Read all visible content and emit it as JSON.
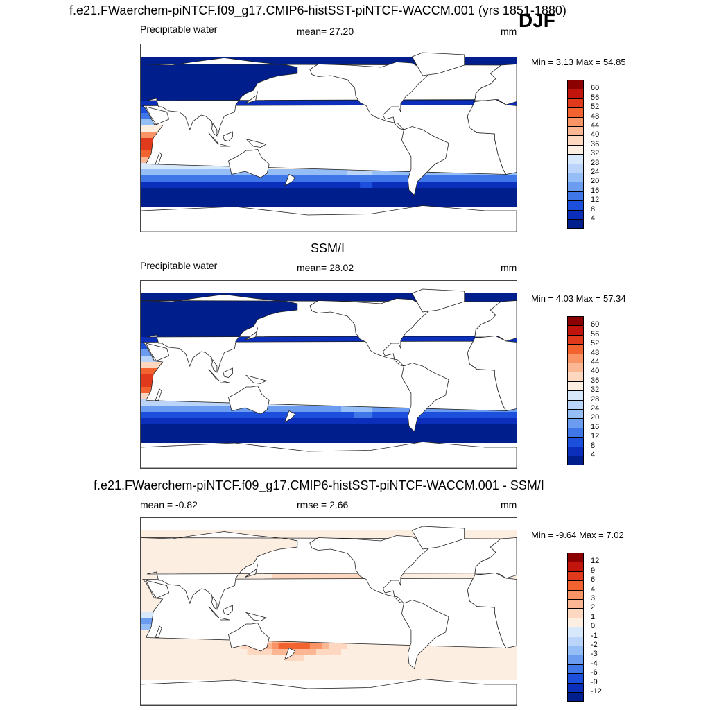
{
  "figure": {
    "title": "f.e21.FWaerchem-piNTCF.f09_g17.CMIP6-histSST-piNTCF-WACCM.001 (yrs 1851-1880)",
    "season": "DJF"
  },
  "panels": [
    {
      "id": "model",
      "heading": "",
      "left_label": "Precipitable water",
      "center_label": "mean=  27.20",
      "units": "mm",
      "minmax": "Min =   3.13 Max =  54.85",
      "levels": [
        "60",
        "56",
        "52",
        "48",
        "44",
        "40",
        "36",
        "32",
        "28",
        "24",
        "20",
        "16",
        "12",
        "8",
        "4"
      ],
      "colors": [
        "#8b0000",
        "#c0140c",
        "#e0391b",
        "#f2632f",
        "#f89466",
        "#fbb793",
        "#fdd7bf",
        "#fdeee2",
        "#d8e8fb",
        "#bad5f9",
        "#95bdf6",
        "#6c9cf0",
        "#3f76e8",
        "#1c50dc",
        "#0b2fbb",
        "#001f8c"
      ],
      "field": "pw"
    },
    {
      "id": "obs",
      "heading": "SSM/I",
      "left_label": "Precipitable water",
      "center_label": "mean=  28.02",
      "units": "mm",
      "minmax": "Min =   4.03 Max =  57.34",
      "levels": [
        "60",
        "56",
        "52",
        "48",
        "44",
        "40",
        "36",
        "32",
        "28",
        "24",
        "20",
        "16",
        "12",
        "8",
        "4"
      ],
      "colors": [
        "#8b0000",
        "#c0140c",
        "#e0391b",
        "#f2632f",
        "#f89466",
        "#fbb793",
        "#fdd7bf",
        "#fdeee2",
        "#d8e8fb",
        "#bad5f9",
        "#95bdf6",
        "#6c9cf0",
        "#3f76e8",
        "#1c50dc",
        "#0b2fbb",
        "#001f8c"
      ],
      "field": "pw"
    },
    {
      "id": "diff",
      "heading": "f.e21.FWaerchem-piNTCF.f09_g17.CMIP6-histSST-piNTCF-WACCM.001 - SSM/I",
      "left_label": "mean =  -0.82",
      "center_label": "rmse =   2.66",
      "units": "mm",
      "minmax": "Min =  -9.64 Max =   7.02",
      "levels": [
        "12",
        "9",
        "6",
        "4",
        "3",
        "2",
        "1",
        "0",
        "-1",
        "-2",
        "-3",
        "-4",
        "-6",
        "-9",
        "-12"
      ],
      "colors": [
        "#8b0000",
        "#c0140c",
        "#e0391b",
        "#f2632f",
        "#f89466",
        "#fbb793",
        "#fdd7bf",
        "#fdeee2",
        "#d8e8fb",
        "#bad5f9",
        "#95bdf6",
        "#6c9cf0",
        "#3f76e8",
        "#1c50dc",
        "#0b2fbb",
        "#001f8c"
      ],
      "field": "diff"
    }
  ]
}
